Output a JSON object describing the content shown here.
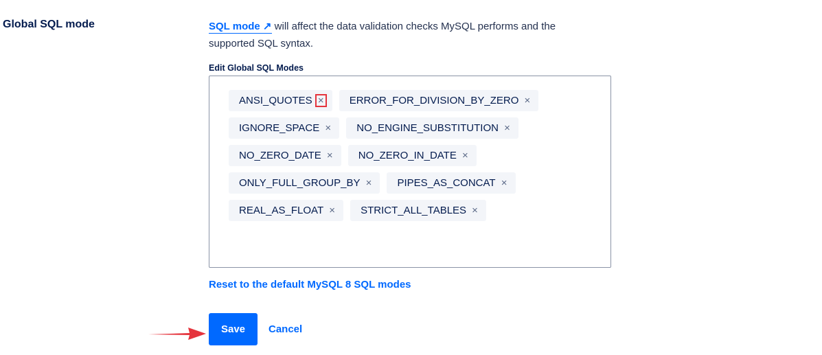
{
  "section_title": "Global SQL mode",
  "description": {
    "link": "SQL mode",
    "link_icon": "external-arrow-icon",
    "text": " will affect the data validation checks MySQL performs and the supported SQL syntax."
  },
  "field_label": "Edit Global SQL Modes",
  "tags": [
    "ANSI_QUOTES",
    "ERROR_FOR_DIVISION_BY_ZERO",
    "IGNORE_SPACE",
    "NO_ENGINE_SUBSTITUTION",
    "NO_ZERO_DATE",
    "NO_ZERO_IN_DATE",
    "ONLY_FULL_GROUP_BY",
    "PIPES_AS_CONCAT",
    "REAL_AS_FLOAT",
    "STRICT_ALL_TABLES"
  ],
  "remove_glyph": "×",
  "highlighted_remove": "ANSI_QUOTES",
  "reset_link": "Reset to the default MySQL 8 SQL modes",
  "save_label": "Save",
  "cancel_label": "Cancel",
  "colors": {
    "accent": "#0069ff",
    "highlight": "#e5343d",
    "annotation_arrow": "#e5343d"
  }
}
